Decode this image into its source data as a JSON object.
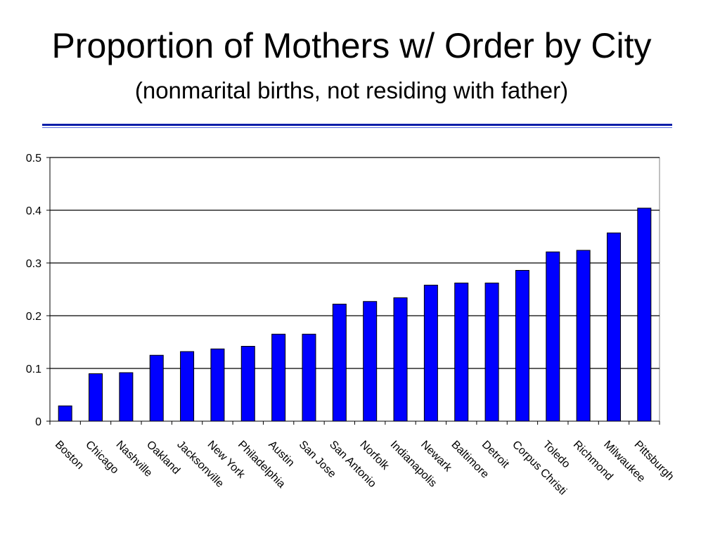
{
  "slide": {
    "title": "Proportion of Mothers w/ Order by City",
    "subtitle": "(nonmarital births, not residing with father)"
  },
  "colors": {
    "bar": "#0000ff",
    "rule": "#0a1ea8"
  },
  "chart_data": {
    "type": "bar",
    "categories": [
      "Boston",
      "Chicago",
      "Nashville",
      "Oakland",
      "Jacksonville",
      "New York",
      "Philadelphia",
      "Austin",
      "San Jose",
      "San Antonio",
      "Norfolk",
      "Indianapolis",
      "Newark",
      "Baltimore",
      "Detroit",
      "Corpus Christi",
      "Toledo",
      "Richmond",
      "Milwaukee",
      "Pittsburgh"
    ],
    "values": [
      0.029,
      0.09,
      0.092,
      0.125,
      0.132,
      0.137,
      0.142,
      0.165,
      0.165,
      0.222,
      0.227,
      0.234,
      0.258,
      0.262,
      0.262,
      0.286,
      0.321,
      0.324,
      0.357,
      0.404
    ],
    "ylim": [
      0,
      0.5
    ],
    "yticks": [
      0,
      0.1,
      0.2,
      0.3,
      0.4,
      0.5
    ],
    "ytick_labels": [
      "0",
      "0.1",
      "0.2",
      "0.3",
      "0.4",
      "0.5"
    ],
    "grid": true,
    "legend": "none"
  }
}
